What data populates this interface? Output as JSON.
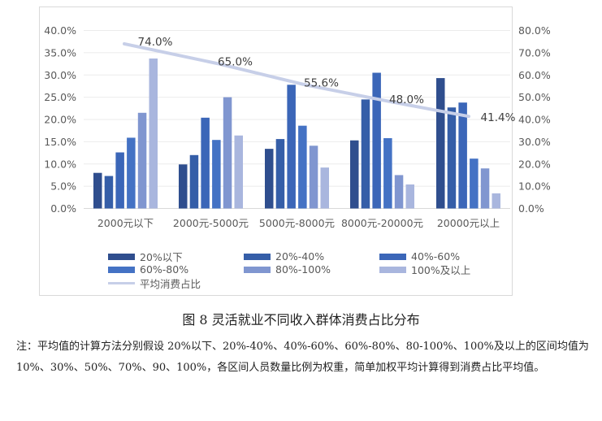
{
  "chart_data": {
    "type": "bar",
    "title": "图8 灵活就业不同收入群体消费占比分布",
    "categories": [
      "2000元以下",
      "2000元-5000元",
      "5000元-8000元",
      "8000元-20000元",
      "20000元以上"
    ],
    "series": [
      {
        "name": "20%以下",
        "color": "#2f4e8e",
        "values": [
          8.0,
          9.9,
          13.4,
          15.3,
          29.3
        ]
      },
      {
        "name": "20%-40%",
        "color": "#355ea8",
        "values": [
          7.3,
          12.0,
          15.6,
          24.5,
          22.7
        ]
      },
      {
        "name": "40%-60%",
        "color": "#3b66b8",
        "values": [
          12.6,
          20.4,
          27.8,
          30.5,
          23.8
        ]
      },
      {
        "name": "60%-80%",
        "color": "#4472c4",
        "values": [
          15.9,
          15.4,
          18.6,
          15.8,
          11.2
        ]
      },
      {
        "name": "80%-100%",
        "color": "#8096d0",
        "values": [
          21.5,
          25.0,
          14.1,
          7.5,
          9.0
        ]
      },
      {
        "name": "100%及以上",
        "color": "#a9b6de",
        "values": [
          33.7,
          16.4,
          9.2,
          5.4,
          3.4
        ]
      }
    ],
    "line_series": {
      "name": "平均消费占比",
      "color": "#c7cfe8",
      "axis": "right",
      "values": [
        74.0,
        65.0,
        55.6,
        48.0,
        41.4
      ],
      "labels": [
        "74.0%",
        "65.0%",
        "55.6%",
        "48.0%",
        "41.4%"
      ]
    },
    "left_axis": {
      "ylim": [
        0,
        40
      ],
      "ticks": [
        "0.0%",
        "5.0%",
        "10.0%",
        "15.0%",
        "20.0%",
        "25.0%",
        "30.0%",
        "35.0%",
        "40.0%"
      ]
    },
    "right_axis": {
      "ylim": [
        0,
        80
      ],
      "ticks": [
        "0.0%",
        "10.0%",
        "20.0%",
        "30.0%",
        "40.0%",
        "50.0%",
        "60.0%",
        "70.0%",
        "80.0%"
      ]
    },
    "grid": true,
    "legend_position": "bottom",
    "xlabel": "",
    "ylabel": ""
  },
  "legend": {
    "items": [
      "20%以下",
      "20%-40%",
      "40%-60%",
      "60%-80%",
      "80%-100%",
      "100%及以上",
      "平均消费占比"
    ]
  },
  "caption": "图 8  灵活就业不同收入群体消费占比分布",
  "note": "注：平均值的计算方法分别假设 20%以下、20%-40%、40%-60%、60%-80%、80-100%、100%及以上的区间均值为 10%、30%、50%、70%、90、100%，各区间人员数量比例为权重，简单加权平均计算得到消费占比平均值。"
}
